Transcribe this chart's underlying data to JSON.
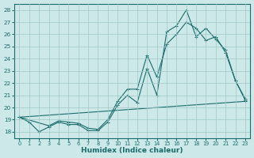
{
  "xlabel": "Humidex (Indice chaleur)",
  "bg_color": "#cce8e8",
  "line_color": "#1a6b6b",
  "grid_color": "#a0c8c8",
  "xlim": [
    -0.5,
    23.5
  ],
  "ylim": [
    17.5,
    28.5
  ],
  "xticks": [
    0,
    1,
    2,
    3,
    4,
    5,
    6,
    7,
    8,
    9,
    10,
    11,
    12,
    13,
    14,
    15,
    16,
    17,
    18,
    19,
    20,
    21,
    22,
    23
  ],
  "yticks": [
    18,
    19,
    20,
    21,
    22,
    23,
    24,
    25,
    26,
    27,
    28
  ],
  "series1_x": [
    0,
    1,
    2,
    3,
    4,
    5,
    6,
    7,
    8,
    9,
    10,
    11,
    12,
    13,
    14,
    15,
    16,
    17,
    18,
    19,
    20,
    21,
    22,
    23
  ],
  "series1_y": [
    19.2,
    18.8,
    18.0,
    18.4,
    18.8,
    18.6,
    18.6,
    18.1,
    18.1,
    18.8,
    20.2,
    21.0,
    20.4,
    23.2,
    21.0,
    26.2,
    26.7,
    28.0,
    25.8,
    26.5,
    25.6,
    24.7,
    22.2,
    20.6
  ],
  "series2_x": [
    0,
    3,
    4,
    5,
    6,
    7,
    8,
    9,
    10,
    11,
    12,
    13,
    14,
    15,
    16,
    17,
    18,
    19,
    20,
    21,
    22,
    23
  ],
  "series2_y": [
    19.2,
    18.5,
    18.9,
    18.8,
    18.7,
    18.3,
    18.2,
    19.0,
    20.5,
    21.5,
    21.5,
    24.3,
    22.5,
    25.2,
    26.0,
    27.0,
    26.5,
    25.5,
    25.8,
    24.5,
    22.2,
    20.7
  ],
  "series3_x": [
    0,
    23
  ],
  "series3_y": [
    19.2,
    20.5
  ]
}
